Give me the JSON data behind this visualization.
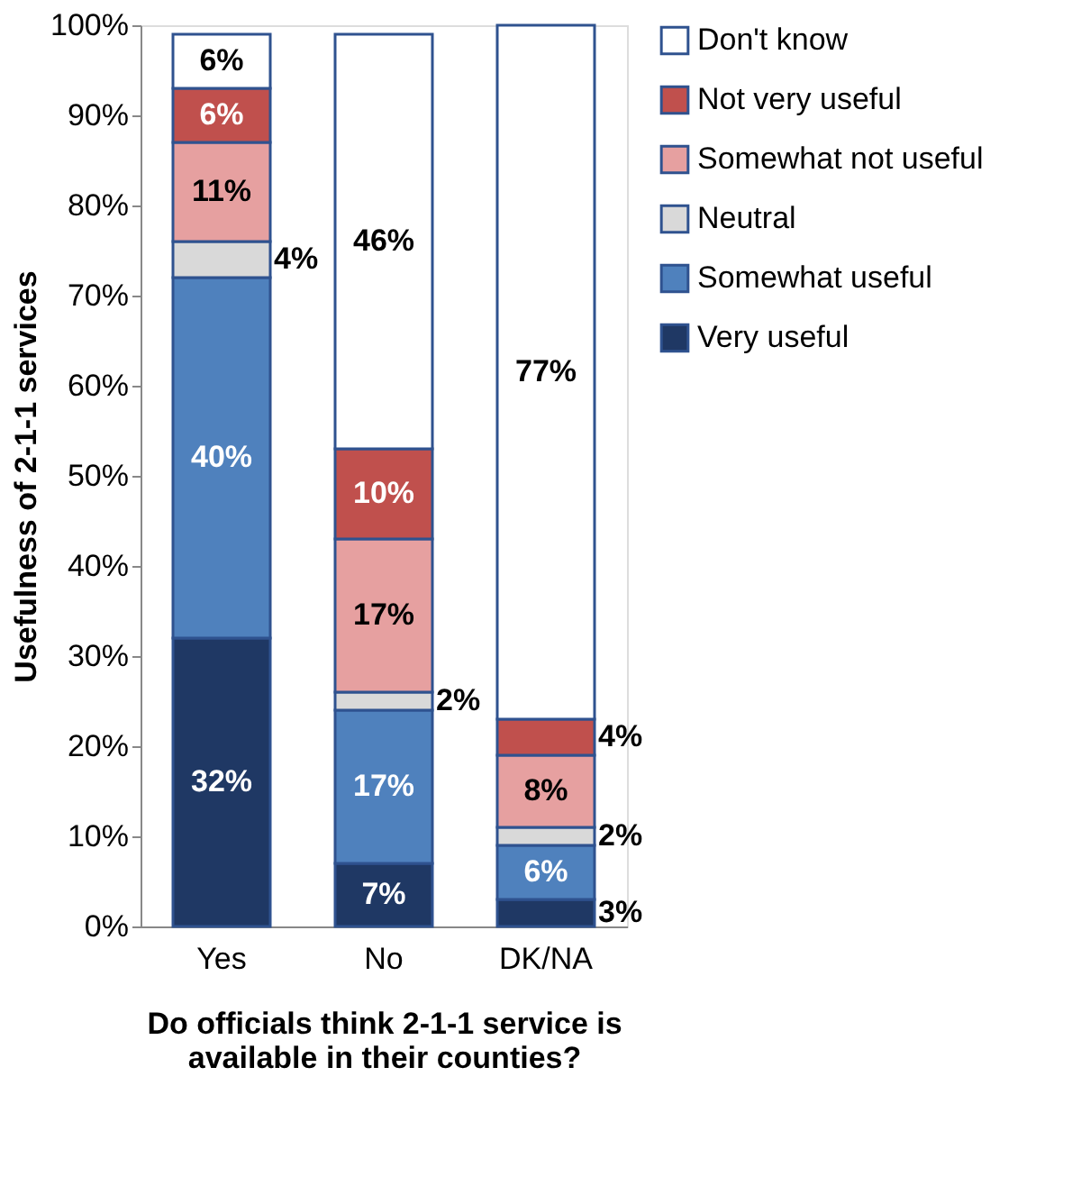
{
  "chart_data": {
    "type": "bar",
    "stacked": true,
    "xlabel": "Do officials think 2-1-1 service is available in their counties?",
    "ylabel": "Usefulness of 2-1-1 services",
    "categories": [
      "Yes",
      "No",
      "DK/NA"
    ],
    "series": [
      {
        "name": "Very useful",
        "color": "#1f3864",
        "values": [
          32,
          7,
          3
        ],
        "value_labels": [
          "32%",
          "7%",
          "3%"
        ]
      },
      {
        "name": "Somewhat useful",
        "color": "#4f81bd",
        "values": [
          40,
          17,
          6
        ],
        "value_labels": [
          "40%",
          "17%",
          "6%"
        ]
      },
      {
        "name": "Neutral",
        "color": "#d9d9d9",
        "values": [
          4,
          2,
          2
        ],
        "value_labels": [
          "4%",
          "2%",
          "2%"
        ]
      },
      {
        "name": "Somewhat not useful",
        "color": "#e6a0a0",
        "values": [
          11,
          17,
          8
        ],
        "value_labels": [
          "11%",
          "17%",
          "8%"
        ]
      },
      {
        "name": "Not very useful",
        "color": "#c0504d",
        "values": [
          6,
          10,
          4
        ],
        "value_labels": [
          "6%",
          "10%",
          "4%"
        ]
      },
      {
        "name": "Don't know",
        "color": "#ffffff",
        "values": [
          6,
          46,
          77
        ],
        "value_labels": [
          "6%",
          "46%",
          "77%"
        ]
      }
    ],
    "ylim": [
      0,
      100
    ],
    "yticks": [
      {
        "value": 0,
        "label": "0%"
      },
      {
        "value": 10,
        "label": "10%"
      },
      {
        "value": 20,
        "label": "20%"
      },
      {
        "value": 30,
        "label": "30%"
      },
      {
        "value": 40,
        "label": "40%"
      },
      {
        "value": 50,
        "label": "50%"
      },
      {
        "value": 60,
        "label": "60%"
      },
      {
        "value": 70,
        "label": "70%"
      },
      {
        "value": 80,
        "label": "80%"
      },
      {
        "value": 90,
        "label": "90%"
      },
      {
        "value": 100,
        "label": "100%"
      }
    ],
    "grid": false,
    "legend": "right"
  }
}
